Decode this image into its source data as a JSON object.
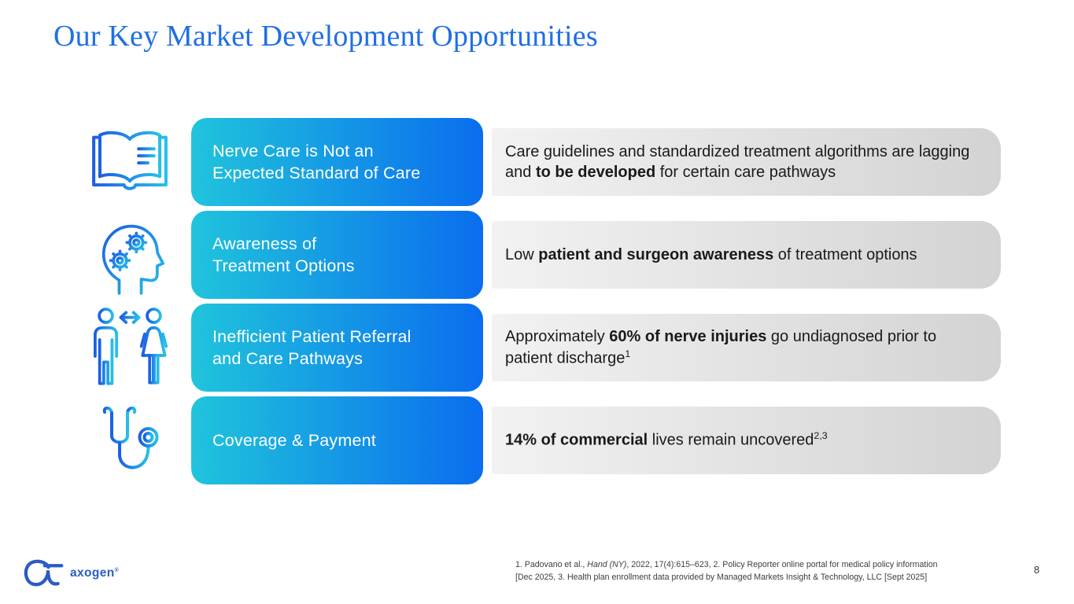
{
  "slide": {
    "title": "Our Key Market Development Opportunities",
    "page_number": "8"
  },
  "rows": [
    {
      "icon": "open-book-icon",
      "label": "Nerve Care is Not an\nExpected Standard of Care",
      "description_parts": [
        {
          "t": "Care guidelines and standardized treatment algorithms are lagging and "
        },
        {
          "t": "to be developed",
          "b": true
        },
        {
          "t": " for certain care pathways"
        }
      ]
    },
    {
      "icon": "head-gears-icon",
      "label": "Awareness of\nTreatment Options",
      "description_parts": [
        {
          "t": "Low "
        },
        {
          "t": "patient and surgeon awareness",
          "b": true
        },
        {
          "t": " of treatment options"
        }
      ]
    },
    {
      "icon": "patient-referral-icon",
      "label": "Inefficient Patient Referral\nand Care Pathways",
      "description_parts": [
        {
          "t": "Approximately "
        },
        {
          "t": "60% of nerve injuries",
          "b": true
        },
        {
          "t": " go undiagnosed prior to patient discharge"
        },
        {
          "t": "1",
          "sup": true
        }
      ]
    },
    {
      "icon": "stethoscope-icon",
      "label": "Coverage & Payment",
      "description_parts": [
        {
          "t": "14% of commercial",
          "b": true
        },
        {
          "t": " lives remain uncovered"
        },
        {
          "t": "2,3",
          "sup": true
        }
      ]
    }
  ],
  "footer": {
    "logo_text": "axogen",
    "logo_mark": "®",
    "footnote_line1_parts": [
      {
        "t": "1. Padovano et al., "
      },
      {
        "t": "Hand (NY)",
        "i": true
      },
      {
        "t": ", 2022, 17(4):615–623, 2. Policy Reporter online portal for medical policy information"
      }
    ],
    "footnote_line2": "[Dec 2025, 3. Health plan enrollment data provided by Managed Markets Insight & Technology, LLC [Sept 2025]"
  },
  "colors": {
    "title_blue": "#1F6FE6",
    "pill_gradient_start": "#20C4DC",
    "pill_gradient_end": "#0A6DEE",
    "gray_gradient_start": "#F2F2F2",
    "gray_gradient_end": "#D3D3D3",
    "icon_gradient_start": "#1C5FE3",
    "icon_gradient_end": "#27BFE8",
    "logo_blue": "#2A5BC6",
    "body_text": "#1A1A1A"
  }
}
